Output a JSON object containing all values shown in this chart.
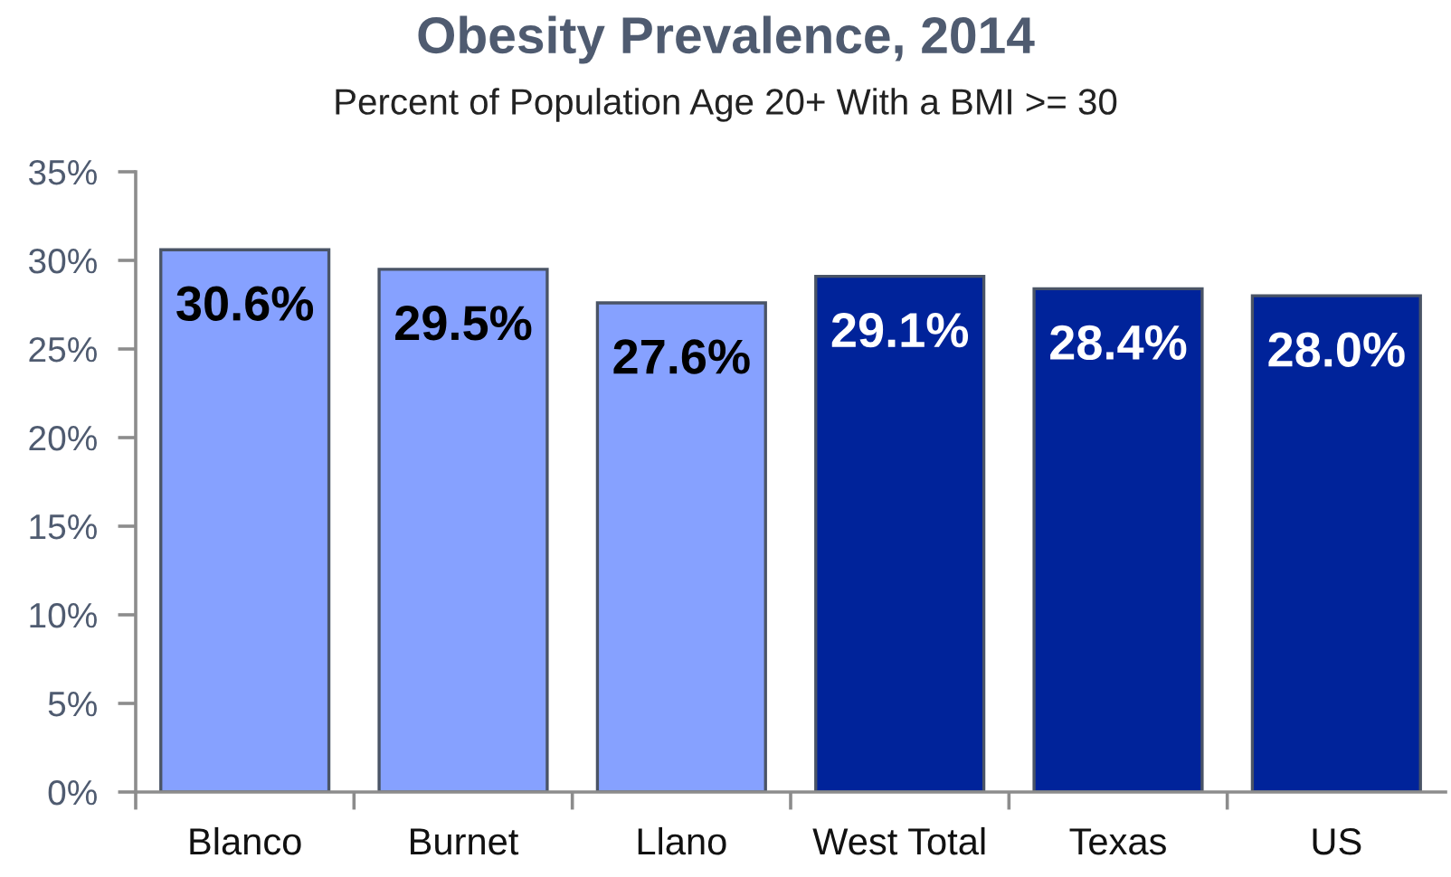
{
  "chart_data": {
    "type": "bar",
    "title": "Obesity Prevalence, 2014",
    "subtitle": "Percent of Population Age 20+ With a BMI >= 30",
    "categories": [
      "Blanco",
      "Burnet",
      "Llano",
      "West Total",
      "Texas",
      "US"
    ],
    "values": [
      30.6,
      29.5,
      27.6,
      29.1,
      28.4,
      28.0
    ],
    "colors": [
      "#86a1ff",
      "#86a1ff",
      "#86a1ff",
      "#00239a",
      "#00239a",
      "#00239a"
    ],
    "value_labels": [
      "30.6%",
      "29.5%",
      "27.6%",
      "29.1%",
      "28.4%",
      "28.0%"
    ],
    "ylim": [
      0,
      35
    ],
    "yticks": [
      {
        "value": 0,
        "label": "0%"
      },
      {
        "value": 5,
        "label": "5%"
      },
      {
        "value": 10,
        "label": "10%"
      },
      {
        "value": 15,
        "label": "15%"
      },
      {
        "value": 20,
        "label": "20%"
      },
      {
        "value": 25,
        "label": "25%"
      },
      {
        "value": 30,
        "label": "30%"
      },
      {
        "value": 35,
        "label": "35%"
      }
    ]
  }
}
